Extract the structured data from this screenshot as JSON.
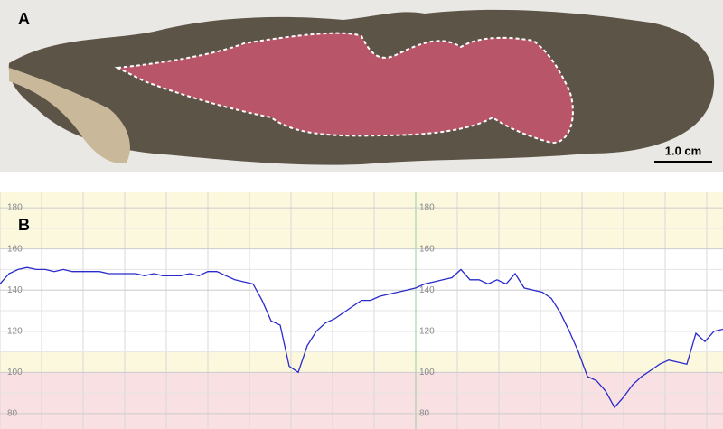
{
  "panel_a": {
    "label": "A",
    "scale_bar": "1.0 cm"
  },
  "chart_data": {
    "type": "line",
    "panel_label": "B",
    "color": "#2a2acc",
    "values": [
      143,
      148,
      150,
      151,
      150,
      150,
      149,
      150,
      149,
      149,
      149,
      149,
      148,
      148,
      148,
      148,
      147,
      148,
      147,
      147,
      147,
      148,
      147,
      149,
      149,
      147,
      145,
      144,
      143,
      135,
      125,
      123,
      103,
      100,
      113,
      120,
      124,
      126,
      129,
      132,
      135,
      135,
      137,
      138,
      139,
      140,
      141,
      143,
      144,
      145,
      146,
      150,
      145,
      145,
      143,
      145,
      143,
      148,
      141,
      140,
      139,
      136,
      129,
      120,
      110,
      98,
      96,
      91,
      83,
      88,
      94,
      98,
      101,
      104,
      106,
      105,
      104,
      119,
      115,
      120,
      121
    ],
    "ylim": [
      72.5,
      187.5
    ],
    "yticks": [
      80,
      100,
      120,
      140,
      160,
      180
    ],
    "grid": true,
    "bands": [
      {
        "from": 72.5,
        "to": 100,
        "color": "#f9e0e3"
      },
      {
        "from": 100,
        "to": 110,
        "color": "#fbf8de"
      },
      {
        "from": 110,
        "to": 160,
        "color": "#ffffff"
      },
      {
        "from": 160,
        "to": 187.5,
        "color": "#fbf8de"
      }
    ]
  }
}
